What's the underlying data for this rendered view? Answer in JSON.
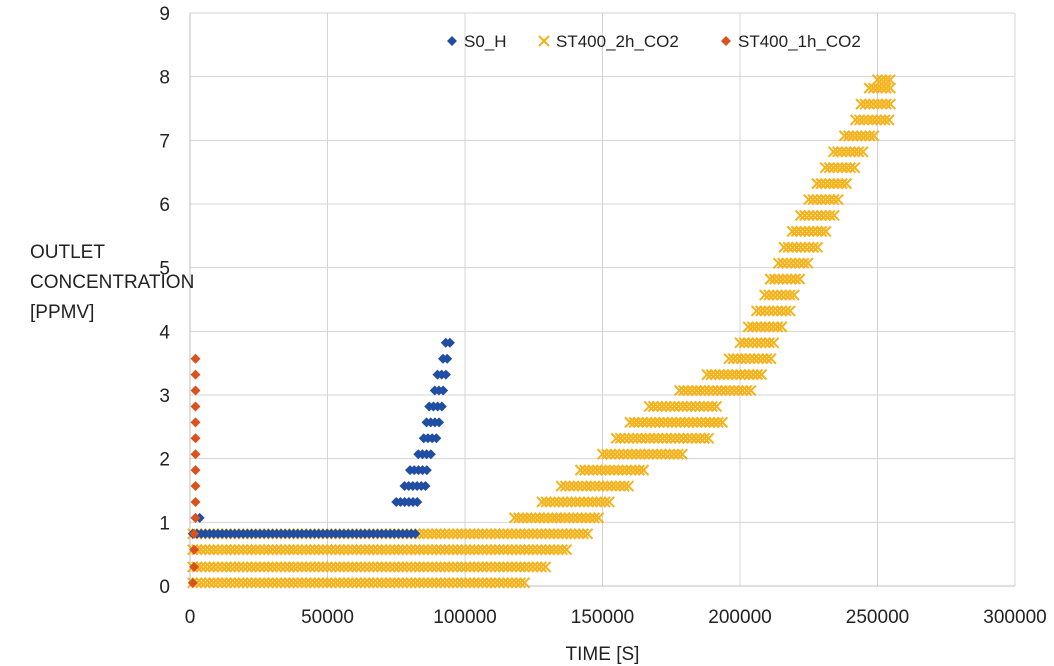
{
  "chart_data": {
    "type": "scatter",
    "title": "",
    "xlabel": "TIME [S]",
    "ylabel_lines": [
      "OUTLET",
      "CONCENTRATION",
      "[PPMV]"
    ],
    "xlim": [
      0,
      300000
    ],
    "ylim": [
      0,
      9
    ],
    "x_ticks": [
      0,
      50000,
      100000,
      150000,
      200000,
      250000,
      300000
    ],
    "x_tick_labels": [
      "0",
      "50000",
      "100000",
      "150000",
      "200000",
      "250000",
      "300000"
    ],
    "y_ticks": [
      0,
      1,
      2,
      3,
      4,
      5,
      6,
      7,
      8,
      9
    ],
    "y_tick_labels": [
      "0",
      "1",
      "2",
      "3",
      "4",
      "5",
      "6",
      "7",
      "8",
      "9"
    ],
    "grid": "major both axes",
    "legend_position": "top-right",
    "series": [
      {
        "name": "S0_H",
        "marker": "diamond",
        "color": "#1f4ea3",
        "segments": [
          {
            "y": 0.82,
            "x_start": 1000,
            "x_end": 83000
          },
          {
            "y": 1.07,
            "x_start": 2000,
            "x_end": 5000
          },
          {
            "y": 1.32,
            "x_start": 75000,
            "x_end": 84000
          },
          {
            "y": 1.57,
            "x_start": 78000,
            "x_end": 86000
          },
          {
            "y": 1.82,
            "x_start": 80000,
            "x_end": 87000
          },
          {
            "y": 2.07,
            "x_start": 83000,
            "x_end": 88000
          },
          {
            "y": 2.32,
            "x_start": 85000,
            "x_end": 90000
          },
          {
            "y": 2.57,
            "x_start": 86000,
            "x_end": 91000
          },
          {
            "y": 2.82,
            "x_start": 87000,
            "x_end": 92000
          },
          {
            "y": 3.07,
            "x_start": 89000,
            "x_end": 93000
          },
          {
            "y": 3.32,
            "x_start": 90000,
            "x_end": 94000
          },
          {
            "y": 3.57,
            "x_start": 92000,
            "x_end": 95000
          },
          {
            "y": 3.82,
            "x_start": 93000,
            "x_end": 95000
          }
        ]
      },
      {
        "name": "ST400_2h_CO2",
        "marker": "x",
        "color": "#f5b21b",
        "segments": [
          {
            "y": 0.05,
            "x_start": 1000,
            "x_end": 122000
          },
          {
            "y": 0.3,
            "x_start": 1000,
            "x_end": 130000
          },
          {
            "y": 0.57,
            "x_start": 1000,
            "x_end": 138000
          },
          {
            "y": 0.82,
            "x_start": 1000,
            "x_end": 145000
          },
          {
            "y": 1.07,
            "x_start": 118000,
            "x_end": 150000
          },
          {
            "y": 1.32,
            "x_start": 128000,
            "x_end": 153000
          },
          {
            "y": 1.57,
            "x_start": 135000,
            "x_end": 160000
          },
          {
            "y": 1.82,
            "x_start": 142000,
            "x_end": 165000
          },
          {
            "y": 2.07,
            "x_start": 150000,
            "x_end": 180000
          },
          {
            "y": 2.32,
            "x_start": 155000,
            "x_end": 190000
          },
          {
            "y": 2.57,
            "x_start": 160000,
            "x_end": 195000
          },
          {
            "y": 2.82,
            "x_start": 167000,
            "x_end": 192000
          },
          {
            "y": 3.07,
            "x_start": 178000,
            "x_end": 205000
          },
          {
            "y": 3.32,
            "x_start": 188000,
            "x_end": 208000
          },
          {
            "y": 3.57,
            "x_start": 196000,
            "x_end": 212000
          },
          {
            "y": 3.82,
            "x_start": 200000,
            "x_end": 213000
          },
          {
            "y": 4.07,
            "x_start": 203000,
            "x_end": 216000
          },
          {
            "y": 4.32,
            "x_start": 206000,
            "x_end": 219000
          },
          {
            "y": 4.57,
            "x_start": 209000,
            "x_end": 221000
          },
          {
            "y": 4.82,
            "x_start": 211000,
            "x_end": 223000
          },
          {
            "y": 5.07,
            "x_start": 214000,
            "x_end": 226000
          },
          {
            "y": 5.32,
            "x_start": 216000,
            "x_end": 229000
          },
          {
            "y": 5.57,
            "x_start": 219000,
            "x_end": 232000
          },
          {
            "y": 5.82,
            "x_start": 222000,
            "x_end": 235000
          },
          {
            "y": 6.07,
            "x_start": 225000,
            "x_end": 237000
          },
          {
            "y": 6.32,
            "x_start": 228000,
            "x_end": 240000
          },
          {
            "y": 6.57,
            "x_start": 231000,
            "x_end": 243000
          },
          {
            "y": 6.82,
            "x_start": 234000,
            "x_end": 246000
          },
          {
            "y": 7.07,
            "x_start": 238000,
            "x_end": 250000
          },
          {
            "y": 7.32,
            "x_start": 242000,
            "x_end": 255000
          },
          {
            "y": 7.57,
            "x_start": 244000,
            "x_end": 256000
          },
          {
            "y": 7.82,
            "x_start": 247000,
            "x_end": 256000
          },
          {
            "y": 7.95,
            "x_start": 250000,
            "x_end": 256000
          }
        ]
      },
      {
        "name": "ST400_1h_CO2",
        "marker": "diamond",
        "color": "#d9531e",
        "points": [
          [
            1000,
            0.05
          ],
          [
            1500,
            0.3
          ],
          [
            1500,
            0.57
          ],
          [
            1500,
            0.82
          ],
          [
            2000,
            1.07
          ],
          [
            2000,
            1.32
          ],
          [
            2000,
            1.57
          ],
          [
            2000,
            1.82
          ],
          [
            2000,
            2.07
          ],
          [
            2000,
            2.32
          ],
          [
            2000,
            2.57
          ],
          [
            2000,
            2.82
          ],
          [
            2000,
            3.07
          ],
          [
            2000,
            3.32
          ],
          [
            2000,
            3.57
          ]
        ]
      }
    ]
  }
}
